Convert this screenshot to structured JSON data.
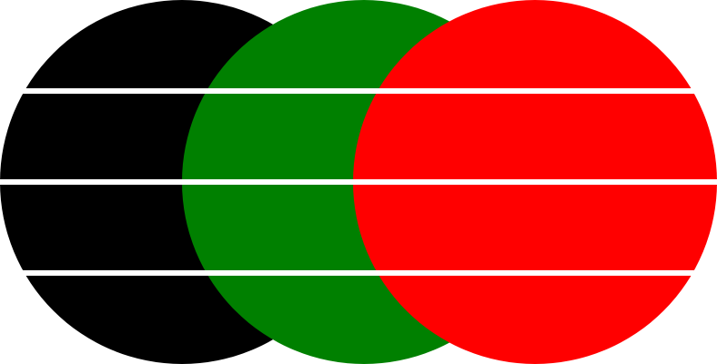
{
  "circles": [
    {
      "name": "black-circle",
      "color": "#000000"
    },
    {
      "name": "green-circle",
      "color": "#008000"
    },
    {
      "name": "red-circle",
      "color": "#ff0000"
    }
  ],
  "stripes": {
    "color": "#ffffff",
    "count": 3
  },
  "background": "#ffffff"
}
